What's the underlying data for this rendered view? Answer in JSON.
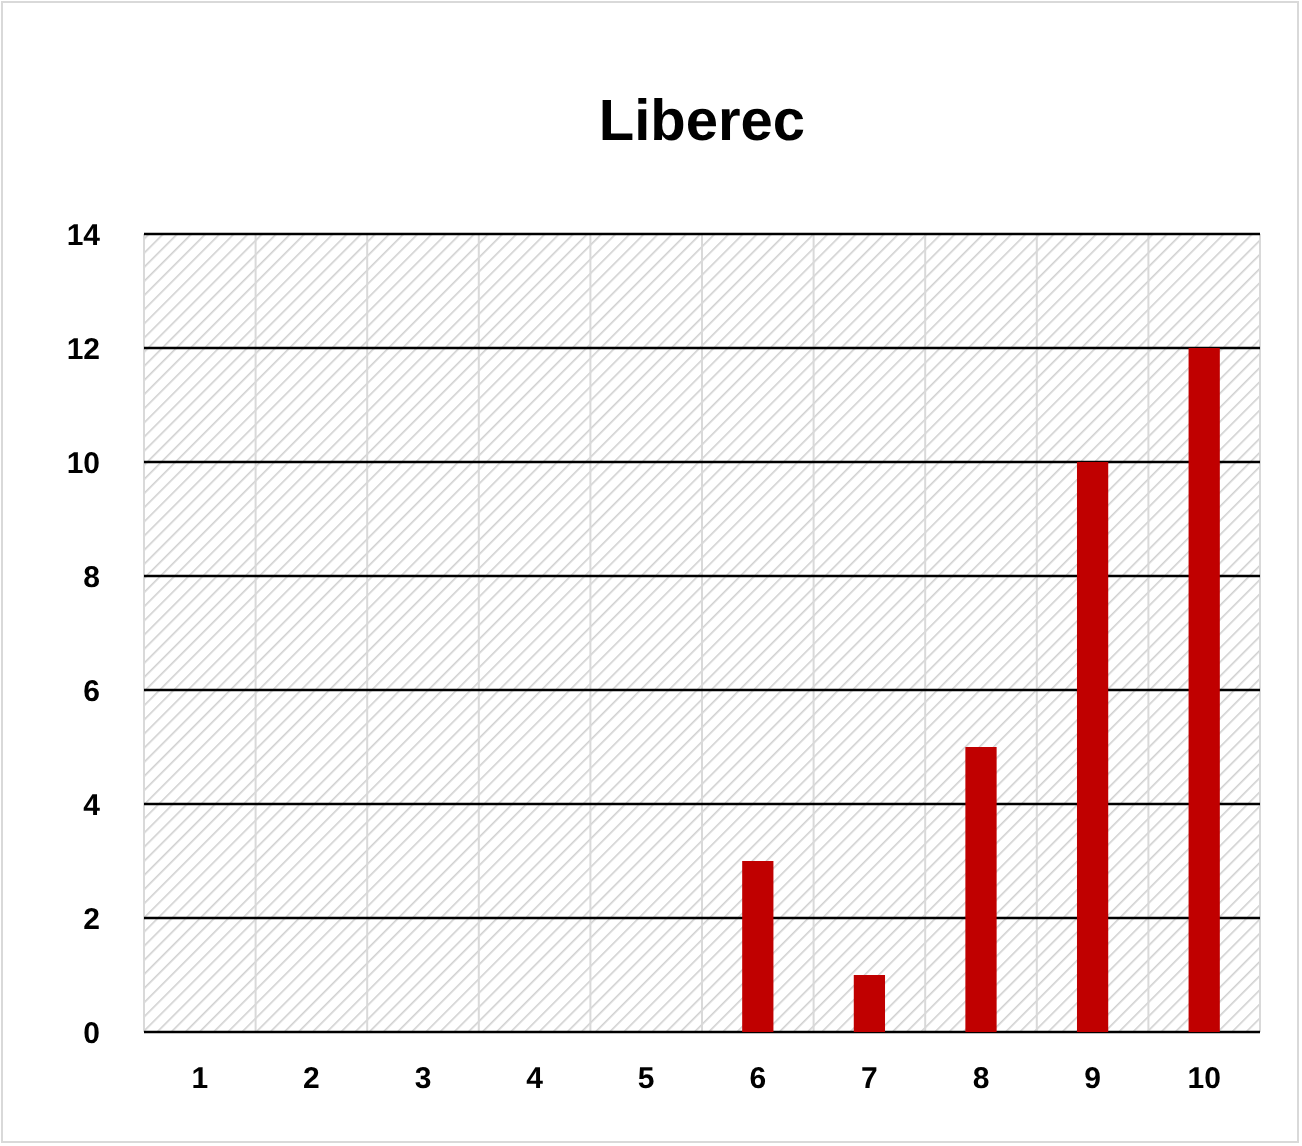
{
  "chart_data": {
    "type": "bar",
    "title": "Liberec",
    "categories": [
      "1",
      "2",
      "3",
      "4",
      "5",
      "6",
      "7",
      "8",
      "9",
      "10"
    ],
    "values": [
      0,
      0,
      0,
      0,
      0,
      3,
      1,
      5,
      10,
      12
    ],
    "color": "#c00000",
    "ylim": [
      0,
      14
    ],
    "yticks": [
      0,
      2,
      4,
      6,
      8,
      10,
      12,
      14
    ],
    "grid": true
  }
}
